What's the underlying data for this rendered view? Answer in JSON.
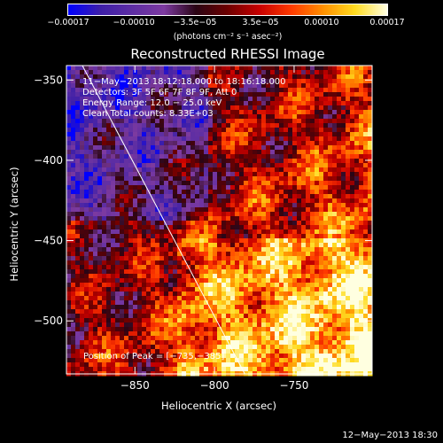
{
  "chart_data": {
    "type": "heatmap",
    "title": "Reconstructed RHESSI Image",
    "xlabel": "Heliocentric X (arcsec)",
    "ylabel": "Heliocentric Y (arcsec)",
    "xlim": [
      -893,
      -701
    ],
    "ylim": [
      -533,
      -341
    ],
    "x_ticks": [
      -850,
      -800,
      -750
    ],
    "y_ticks": [
      -350,
      -400,
      -450,
      -500
    ],
    "x_tick_labels": [
      "−850",
      "−800",
      "−750"
    ],
    "y_tick_labels": [
      "−350",
      "−400",
      "−450",
      "−500"
    ],
    "colorbar": {
      "range": [
        -0.00017,
        0.00017
      ],
      "tick_labels": [
        "−0.00017",
        "−0.00010",
        "−3.5e−05",
        "3.5e−05",
        "0.00010",
        "0.00017"
      ],
      "tick_values": [
        -0.00017,
        -0.0001,
        -3.5e-05,
        3.5e-05,
        0.0001,
        0.00017
      ],
      "units_label": "(photons cm⁻² s⁻¹ asec⁻²)"
    },
    "annotations": {
      "time_range": "11−May−2013 18:12:18.000 to 18:16:18.000",
      "detectors": "Detectors: 3F 5F 6F 7F 8F 9F, Att 0",
      "energy_range": "Energy Range: 12.0 − 25.0 keV",
      "method_counts": "Clean     Total counts: 8.33E+03",
      "peak_position": "Position of Peak = [−735,−385]"
    },
    "limb_line": {
      "x": [
        -883,
        -781
      ],
      "y": [
        -341,
        -533
      ]
    },
    "colors": {
      "background": "#000000",
      "text": "#ffffff",
      "limb": "#ffffff"
    },
    "colormap": [
      "#0000ff",
      "#3e1fa8",
      "#5e2ea3",
      "#7d3aa0",
      "#2a0515",
      "#6e0000",
      "#c80000",
      "#ff3a00",
      "#ff9000",
      "#ffdc20",
      "#ffffe0"
    ]
  },
  "footer": {
    "timestamp": "12−May−2013 18:30"
  }
}
